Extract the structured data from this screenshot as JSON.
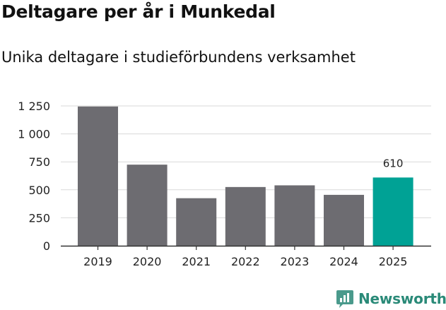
{
  "header": {
    "title": "Deltagare per år i Munkedal",
    "subtitle": "Unika deltagare i studieförbundens verksamhet"
  },
  "chart_data": {
    "type": "bar",
    "title": "Deltagare per år i Munkedal",
    "subtitle": "Unika deltagare i studieförbundens verksamhet",
    "xlabel": "",
    "ylabel": "",
    "categories": [
      "2019",
      "2020",
      "2021",
      "2022",
      "2023",
      "2024",
      "2025"
    ],
    "values": [
      1245,
      725,
      425,
      525,
      540,
      455,
      610
    ],
    "highlight_index": 6,
    "data_labels": [
      {
        "index": 6,
        "text": "610"
      }
    ],
    "yticks": [
      {
        "value": 0,
        "label": "0"
      },
      {
        "value": 250,
        "label": "250"
      },
      {
        "value": 500,
        "label": "500"
      },
      {
        "value": 750,
        "label": "750"
      },
      {
        "value": 1000,
        "label": "1 000"
      },
      {
        "value": 1250,
        "label": "1 250"
      }
    ],
    "ylim": [
      0,
      1250
    ],
    "grid": true,
    "legend": "none",
    "colors": {
      "bar": "#6d6c71",
      "highlight": "#00a295",
      "grid": "#d9d9d9",
      "axis": "#333333"
    }
  },
  "branding": {
    "name": "Newsworthy",
    "icon": "newsworthy-logo-icon",
    "color": "#2a8a78"
  }
}
